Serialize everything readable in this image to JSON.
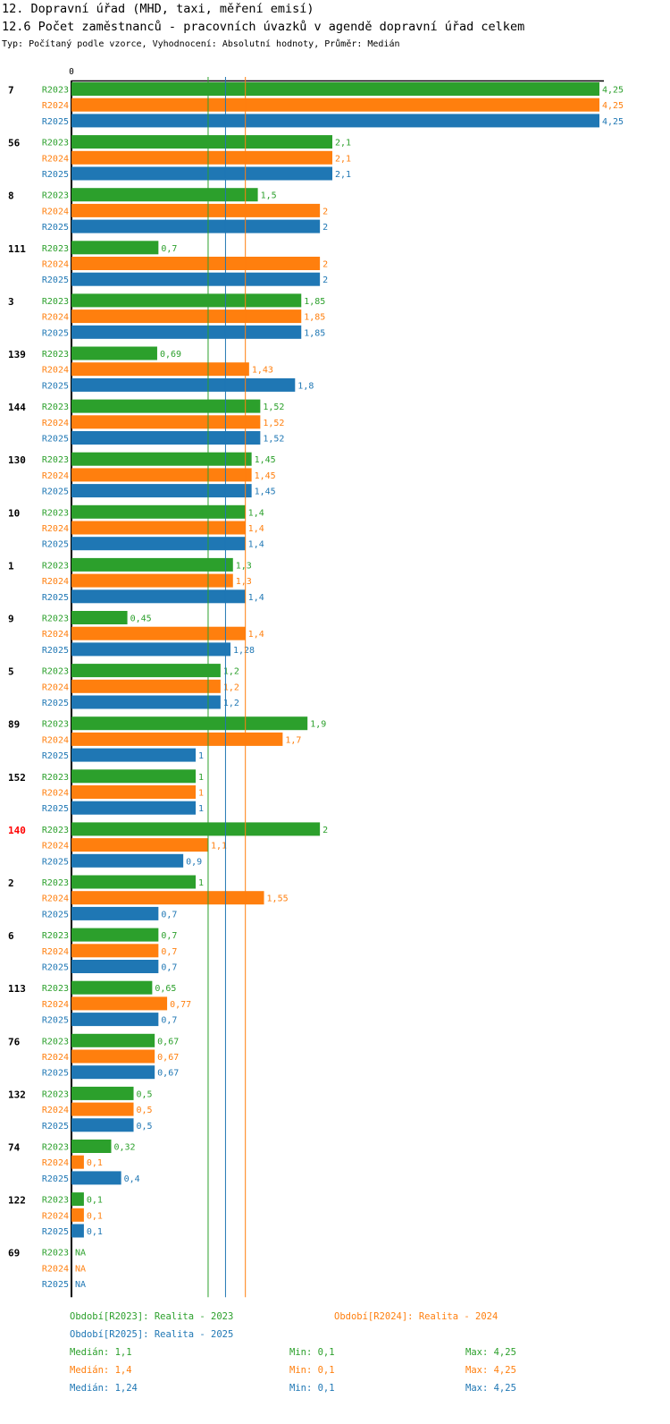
{
  "header": {
    "title1": "12. Dopravní úřad (MHD, taxi, měření emisí)",
    "title2": "12.6 Počet zaměstnanců - pracovních úvazků v agendě dopravní úřad celkem",
    "subtitle": "Typ: Počítaný podle vzorce, Vyhodnocení: Absolutní hodnoty, Průměr: Medián"
  },
  "colors": {
    "R2023": "#2ca02c",
    "R2024": "#ff7f0e",
    "R2025": "#1f77b4",
    "highlight": "#ff0000"
  },
  "chart_data": {
    "type": "bar",
    "orientation": "horizontal",
    "axis_zero_label": "0",
    "xlim": [
      0,
      4.25
    ],
    "series_names": [
      "R2023",
      "R2024",
      "R2025"
    ],
    "highlighted_category": "140",
    "categories": [
      "7",
      "56",
      "8",
      "111",
      "3",
      "139",
      "144",
      "130",
      "10",
      "1",
      "9",
      "5",
      "89",
      "152",
      "140",
      "2",
      "6",
      "113",
      "76",
      "132",
      "74",
      "122",
      "69"
    ],
    "values": [
      [
        4.25,
        4.25,
        4.25
      ],
      [
        2.1,
        2.1,
        2.1
      ],
      [
        1.5,
        2,
        2
      ],
      [
        0.7,
        2,
        2
      ],
      [
        1.85,
        1.85,
        1.85
      ],
      [
        0.69,
        1.43,
        1.8
      ],
      [
        1.52,
        1.52,
        1.52
      ],
      [
        1.45,
        1.45,
        1.45
      ],
      [
        1.4,
        1.4,
        1.4
      ],
      [
        1.3,
        1.3,
        1.4
      ],
      [
        0.45,
        1.4,
        1.28
      ],
      [
        1.2,
        1.2,
        1.2
      ],
      [
        1.9,
        1.7,
        1
      ],
      [
        1,
        1,
        1
      ],
      [
        2,
        1.1,
        0.9
      ],
      [
        1,
        1.55,
        0.7
      ],
      [
        0.7,
        0.7,
        0.7
      ],
      [
        0.65,
        0.77,
        0.7
      ],
      [
        0.67,
        0.67,
        0.67
      ],
      [
        0.5,
        0.5,
        0.5
      ],
      [
        0.32,
        0.1,
        0.4
      ],
      [
        0.1,
        0.1,
        0.1
      ],
      [
        null,
        null,
        null
      ]
    ],
    "value_labels": [
      [
        "4,25",
        "4,25",
        "4,25"
      ],
      [
        "2,1",
        "2,1",
        "2,1"
      ],
      [
        "1,5",
        "2",
        "2"
      ],
      [
        "0,7",
        "2",
        "2"
      ],
      [
        "1,85",
        "1,85",
        "1,85"
      ],
      [
        "0,69",
        "1,43",
        "1,8"
      ],
      [
        "1,52",
        "1,52",
        "1,52"
      ],
      [
        "1,45",
        "1,45",
        "1,45"
      ],
      [
        "1,4",
        "1,4",
        "1,4"
      ],
      [
        "1,3",
        "1,3",
        "1,4"
      ],
      [
        "0,45",
        "1,4",
        "1,28"
      ],
      [
        "1,2",
        "1,2",
        "1,2"
      ],
      [
        "1,9",
        "1,7",
        "1"
      ],
      [
        "1",
        "1",
        "1"
      ],
      [
        "2",
        "1,1",
        "0,9"
      ],
      [
        "1",
        "1,55",
        "0,7"
      ],
      [
        "0,7",
        "0,7",
        "0,7"
      ],
      [
        "0,65",
        "0,77",
        "0,7"
      ],
      [
        "0,67",
        "0,67",
        "0,67"
      ],
      [
        "0,5",
        "0,5",
        "0,5"
      ],
      [
        "0,32",
        "0,1",
        "0,4"
      ],
      [
        "0,1",
        "0,1",
        "0,1"
      ],
      [
        "NA",
        "NA",
        "NA"
      ]
    ],
    "median_lines": {
      "R2023": 1.1,
      "R2024": 1.4,
      "R2025": 1.24
    }
  },
  "legend": {
    "r2023": "Období[R2023]: Realita - 2023",
    "r2024": "Období[R2024]: Realita - 2024",
    "r2025": "Období[R2025]: Realita - 2025"
  },
  "stats": {
    "r2023": {
      "median": "Medián: 1,1",
      "min": "Min: 0,1",
      "max": "Max: 4,25"
    },
    "r2024": {
      "median": "Medián: 1,4",
      "min": "Min: 0,1",
      "max": "Max: 4,25"
    },
    "r2025": {
      "median": "Medián: 1,24",
      "min": "Min: 0,1",
      "max": "Max: 4,25"
    }
  }
}
